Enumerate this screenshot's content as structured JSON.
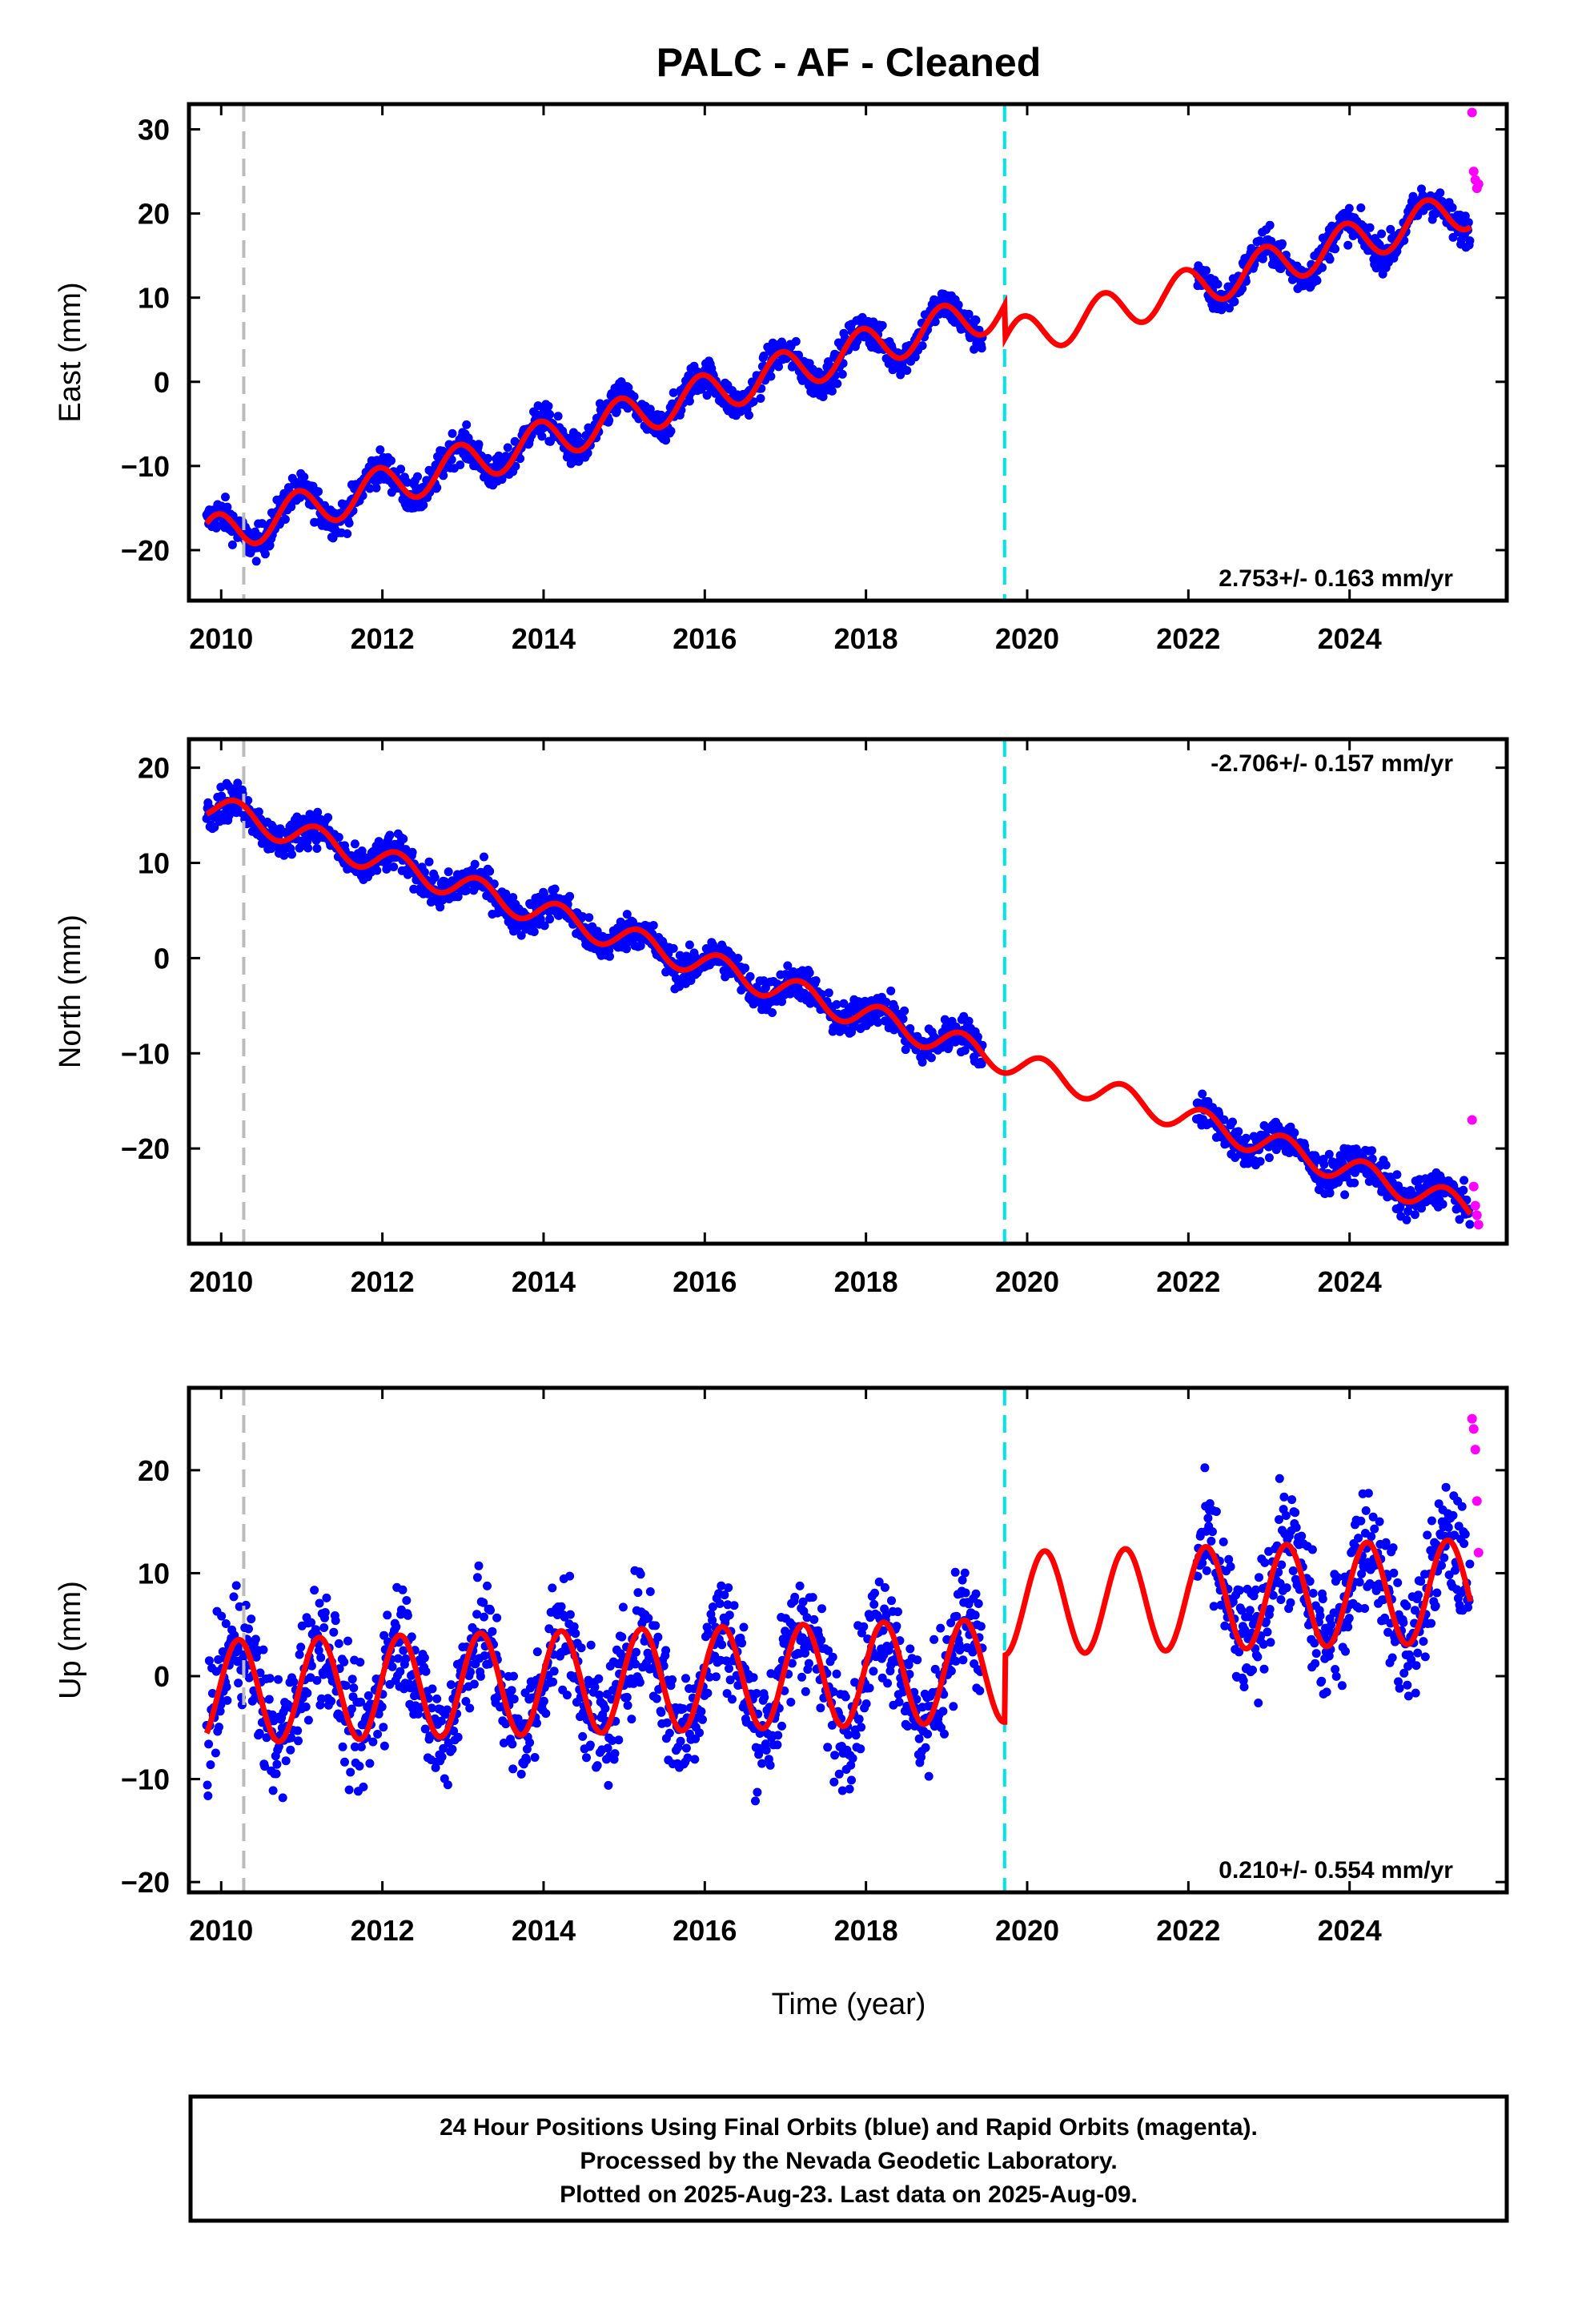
{
  "title": "PALC  - AF - Cleaned",
  "footer": {
    "line1": "24 Hour Positions Using Final Orbits (blue) and Rapid Orbits (magenta).",
    "line2": "Processed by the Nevada Geodetic Laboratory.",
    "line3": "Plotted on 2025-Aug-23. Last data on 2025-Aug-09."
  },
  "colors": {
    "final_orbits": "#0000ff",
    "rapid_orbits": "#ff00ff",
    "model": "#ff0000",
    "equipment_change": "#bbbbbb",
    "event": "#00e5e5"
  },
  "chart_data": [
    {
      "type": "scatter",
      "xlabel": "",
      "ylabel": "East (mm)",
      "xlim": [
        2009.6,
        2025.95
      ],
      "ylim": [
        -26,
        33
      ],
      "xticks": [
        2010,
        2012,
        2014,
        2016,
        2018,
        2020,
        2022,
        2024
      ],
      "yticks": [
        -20,
        -10,
        0,
        10,
        20,
        30
      ],
      "grid": false,
      "rate_label": "2.753+/- 0.163 mm/yr",
      "rate_position": "bottom-right",
      "model": {
        "rate": 2.753,
        "value_at_2010": -18.0,
        "annual_amplitude": 2.4,
        "annual_phase": 1.9,
        "offset_2019_7": -4.0
      },
      "data_gap": [
        2019.45,
        2022.1
      ],
      "rapid_points": {
        "x": [
          2025.52,
          2025.54,
          2025.56,
          2025.58,
          2025.6
        ],
        "y": [
          32,
          25,
          24,
          23,
          23.5
        ]
      },
      "vertical_lines": [
        {
          "x": 2010.28,
          "kind": "equipment_change"
        },
        {
          "x": 2019.72,
          "kind": "event"
        }
      ]
    },
    {
      "type": "scatter",
      "xlabel": "",
      "ylabel": "North (mm)",
      "xlim": [
        2009.6,
        2025.95
      ],
      "ylim": [
        -30,
        23
      ],
      "xticks": [
        2010,
        2012,
        2014,
        2016,
        2018,
        2020,
        2022,
        2024
      ],
      "yticks": [
        -20,
        -10,
        0,
        10,
        20
      ],
      "grid": false,
      "rate_label": "-2.706+/- 0.157 mm/yr",
      "rate_position": "top-right",
      "model": {
        "rate": -2.706,
        "value_at_2010": 15.6,
        "annual_amplitude": 1.4,
        "annual_phase": 0.4,
        "offset_2019_7": 0.0
      },
      "data_gap": [
        2019.45,
        2022.1
      ],
      "rapid_points": {
        "x": [
          2025.52,
          2025.54,
          2025.56,
          2025.58,
          2025.6
        ],
        "y": [
          -17,
          -24,
          -26,
          -27,
          -28
        ]
      },
      "vertical_lines": [
        {
          "x": 2010.28,
          "kind": "equipment_change"
        },
        {
          "x": 2019.72,
          "kind": "event"
        }
      ]
    },
    {
      "type": "scatter",
      "xlabel": "Time (year)",
      "ylabel": "Up (mm)",
      "xlim": [
        2009.6,
        2025.95
      ],
      "ylim": [
        -21,
        28
      ],
      "xticks": [
        2010,
        2012,
        2014,
        2016,
        2018,
        2020,
        2022,
        2024
      ],
      "yticks": [
        -20,
        -10,
        0,
        10,
        20
      ],
      "grid": false,
      "rate_label": "0.210+/- 0.554 mm/yr",
      "rate_position": "bottom-right",
      "model": {
        "rate": 0.21,
        "value_at_2010": -1.5,
        "annual_amplitude": 5.0,
        "annual_phase": 0.2,
        "offset_2019_7": 6.5
      },
      "data_gap": [
        2019.45,
        2022.1
      ],
      "rapid_points": {
        "x": [
          2025.52,
          2025.54,
          2025.56,
          2025.58,
          2025.6
        ],
        "y": [
          25,
          24,
          22,
          17,
          12
        ]
      },
      "vertical_lines": [
        {
          "x": 2010.28,
          "kind": "equipment_change"
        },
        {
          "x": 2019.72,
          "kind": "event"
        }
      ]
    }
  ]
}
